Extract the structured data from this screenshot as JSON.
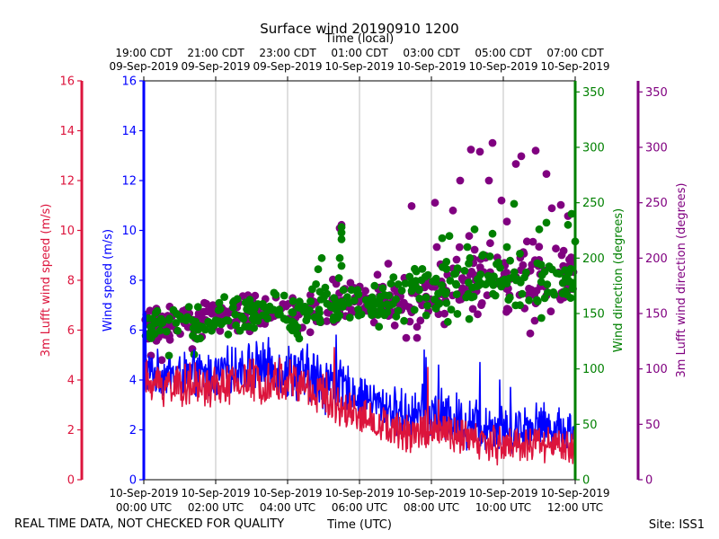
{
  "chart_data": {
    "type": "line+scatter",
    "title": "Surface wind 20190910 1200",
    "top_axis_label": "Time (local)",
    "x_label": "Time (UTC)",
    "footer_left": "REAL TIME DATA, NOT CHECKED FOR QUALITY",
    "footer_right": "Site: ISS1",
    "x_range_hours": [
      0,
      12
    ],
    "bottom_ticks": [
      {
        "h": 0,
        "l1": "10-Sep-2019",
        "l2": "00:00 UTC"
      },
      {
        "h": 2,
        "l1": "10-Sep-2019",
        "l2": "02:00 UTC"
      },
      {
        "h": 4,
        "l1": "10-Sep-2019",
        "l2": "04:00 UTC"
      },
      {
        "h": 6,
        "l1": "10-Sep-2019",
        "l2": "06:00 UTC"
      },
      {
        "h": 8,
        "l1": "10-Sep-2019",
        "l2": "08:00 UTC"
      },
      {
        "h": 10,
        "l1": "10-Sep-2019",
        "l2": "10:00 UTC"
      },
      {
        "h": 12,
        "l1": "10-Sep-2019",
        "l2": "12:00 UTC"
      }
    ],
    "top_ticks": [
      {
        "h": 0,
        "l1": "19:00 CDT",
        "l2": "09-Sep-2019"
      },
      {
        "h": 2,
        "l1": "21:00 CDT",
        "l2": "09-Sep-2019"
      },
      {
        "h": 4,
        "l1": "23:00 CDT",
        "l2": "09-Sep-2019"
      },
      {
        "h": 6,
        "l1": "01:00 CDT",
        "l2": "10-Sep-2019"
      },
      {
        "h": 8,
        "l1": "03:00 CDT",
        "l2": "10-Sep-2019"
      },
      {
        "h": 10,
        "l1": "05:00 CDT",
        "l2": "10-Sep-2019"
      },
      {
        "h": 12,
        "l1": "07:00 CDT",
        "l2": "10-Sep-2019"
      }
    ],
    "axes": {
      "lufft_speed": {
        "label": "3m Lufft wind speed (m/s)",
        "range": [
          0,
          16
        ],
        "ticks": [
          0,
          2,
          4,
          6,
          8,
          10,
          12,
          14,
          16
        ],
        "color": "#dc143c"
      },
      "speed": {
        "label": "Wind speed (m/s)",
        "range": [
          0,
          16
        ],
        "ticks": [
          0,
          2,
          4,
          6,
          8,
          10,
          12,
          14,
          16
        ],
        "color": "#0000ff"
      },
      "direction": {
        "label": "Wind direction (degrees)",
        "range": [
          0,
          360
        ],
        "ticks": [
          0,
          50,
          100,
          150,
          200,
          250,
          300,
          350
        ],
        "color": "#008000"
      },
      "lufft_direction": {
        "label": "3m Lufft wind direction (degrees)",
        "range": [
          0,
          360
        ],
        "ticks": [
          0,
          50,
          100,
          150,
          200,
          250,
          300,
          350
        ],
        "color": "#800080"
      }
    },
    "series": [
      {
        "name": "Wind speed (m/s)",
        "axis": "speed",
        "kind": "line",
        "color": "#0000ff",
        "trend": [
          [
            0,
            4.3
          ],
          [
            1,
            4.2
          ],
          [
            2,
            4.2
          ],
          [
            3,
            4.6
          ],
          [
            4,
            4.4
          ],
          [
            5,
            4.0
          ],
          [
            6,
            3.4
          ],
          [
            7,
            2.7
          ],
          [
            8,
            2.6
          ],
          [
            9,
            2.3
          ],
          [
            10,
            2.1
          ],
          [
            11,
            2.2
          ],
          [
            12,
            1.9
          ]
        ],
        "amp": [
          [
            0,
            1.0
          ],
          [
            3,
            1.1
          ],
          [
            5,
            1.5
          ],
          [
            6,
            0.9
          ],
          [
            8,
            1.3
          ],
          [
            12,
            1.0
          ]
        ],
        "spikes": [
          [
            0.05,
            6.7
          ],
          [
            5.35,
            5.8
          ],
          [
            7.8,
            5.2
          ],
          [
            7.85,
            4.9
          ],
          [
            8.2,
            4.6
          ],
          [
            9.35,
            4.7
          ],
          [
            9.9,
            4.0
          ],
          [
            10.2,
            3.7
          ]
        ]
      },
      {
        "name": "3m Lufft wind speed (m/s)",
        "axis": "lufft_speed",
        "kind": "line",
        "color": "#dc143c",
        "trend": [
          [
            0,
            3.9
          ],
          [
            1,
            3.8
          ],
          [
            2,
            3.7
          ],
          [
            3,
            4.0
          ],
          [
            4,
            4.0
          ],
          [
            5,
            3.4
          ],
          [
            6,
            2.6
          ],
          [
            7,
            1.9
          ],
          [
            8,
            2.0
          ],
          [
            9,
            1.6
          ],
          [
            10,
            1.4
          ],
          [
            11,
            1.5
          ],
          [
            12,
            1.3
          ]
        ],
        "amp": [
          [
            0,
            1.0
          ],
          [
            3,
            1.0
          ],
          [
            5,
            1.1
          ],
          [
            6,
            0.8
          ],
          [
            8,
            1.0
          ],
          [
            12,
            0.8
          ]
        ],
        "spikes": [
          [
            5.3,
            5.3
          ],
          [
            7.9,
            4.5
          ],
          [
            8.2,
            3.2
          ]
        ]
      },
      {
        "name": "Wind direction (degrees)",
        "axis": "direction",
        "kind": "scatter",
        "color": "#008000",
        "trend": [
          [
            0,
            140
          ],
          [
            1,
            140
          ],
          [
            2,
            145
          ],
          [
            3,
            150
          ],
          [
            4,
            148
          ],
          [
            5,
            158
          ],
          [
            6,
            158
          ],
          [
            7,
            165
          ],
          [
            8,
            170
          ],
          [
            9,
            175
          ],
          [
            10,
            178
          ],
          [
            11,
            180
          ],
          [
            12,
            178
          ]
        ],
        "amp": [
          [
            0,
            14
          ],
          [
            4,
            16
          ],
          [
            5,
            22
          ],
          [
            8,
            20
          ],
          [
            10,
            26
          ],
          [
            12,
            26
          ]
        ],
        "outliers": [
          [
            0.7,
            112
          ],
          [
            1.4,
            113
          ],
          [
            4.85,
            190
          ],
          [
            4.95,
            200
          ],
          [
            5.45,
            200
          ],
          [
            5.5,
            193
          ],
          [
            5.5,
            217
          ],
          [
            5.5,
            223
          ],
          [
            5.5,
            228
          ],
          [
            8.3,
            218
          ],
          [
            8.5,
            220
          ],
          [
            9.0,
            210
          ],
          [
            9.2,
            226
          ],
          [
            9.7,
            222
          ],
          [
            10.1,
            210
          ],
          [
            10.3,
            249
          ],
          [
            11.0,
            226
          ],
          [
            11.2,
            232
          ],
          [
            11.8,
            230
          ],
          [
            11.9,
            240
          ],
          [
            12.0,
            215
          ]
        ]
      },
      {
        "name": "3m Lufft wind direction (degrees)",
        "axis": "lufft_direction",
        "kind": "scatter",
        "color": "#800080",
        "trend": [
          [
            0,
            140
          ],
          [
            1,
            140
          ],
          [
            2,
            147
          ],
          [
            3,
            152
          ],
          [
            4,
            150
          ],
          [
            5,
            158
          ],
          [
            6,
            160
          ],
          [
            7,
            160
          ],
          [
            8,
            168
          ],
          [
            9,
            178
          ],
          [
            10,
            180
          ],
          [
            11,
            182
          ],
          [
            12,
            182
          ]
        ],
        "amp": [
          [
            0,
            13
          ],
          [
            4,
            14
          ],
          [
            5,
            15
          ],
          [
            7,
            20
          ],
          [
            9,
            26
          ],
          [
            12,
            30
          ]
        ],
        "outliers": [
          [
            0.2,
            112
          ],
          [
            0.5,
            108
          ],
          [
            1.35,
            118
          ],
          [
            5.45,
            227
          ],
          [
            5.5,
            230
          ],
          [
            6.5,
            185
          ],
          [
            6.8,
            195
          ],
          [
            7.3,
            128
          ],
          [
            7.45,
            247
          ],
          [
            7.6,
            138
          ],
          [
            7.6,
            128
          ],
          [
            8.1,
            250
          ],
          [
            8.15,
            210
          ],
          [
            8.6,
            243
          ],
          [
            8.8,
            270
          ],
          [
            9.05,
            220
          ],
          [
            9.1,
            298
          ],
          [
            9.35,
            296
          ],
          [
            9.6,
            270
          ],
          [
            9.7,
            304
          ],
          [
            9.95,
            252
          ],
          [
            10.1,
            233
          ],
          [
            10.35,
            285
          ],
          [
            10.5,
            292
          ],
          [
            10.75,
            132
          ],
          [
            10.9,
            297
          ],
          [
            11.2,
            276
          ],
          [
            11.35,
            245
          ],
          [
            11.6,
            248
          ],
          [
            11.8,
            238
          ]
        ]
      }
    ]
  }
}
